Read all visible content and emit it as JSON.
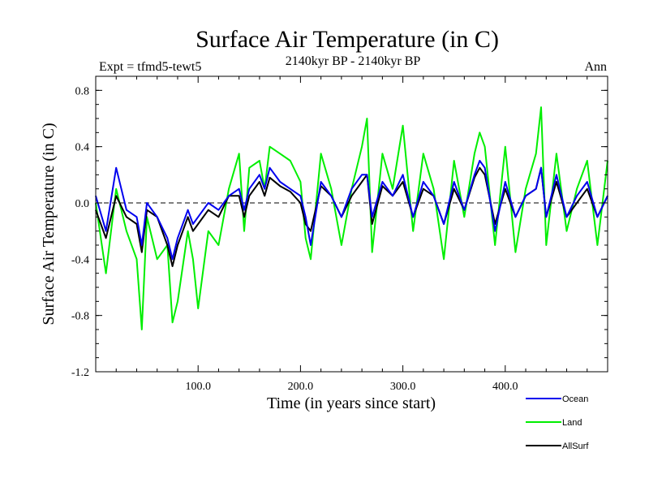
{
  "chart_data": {
    "type": "line",
    "title": "Surface Air Temperature (in C)",
    "subtitle": "2140kyr BP - 2140kyr BP",
    "left_label": "Expt = tfmd5-tewt5",
    "right_label": "Ann",
    "xlabel": "Time (in years since start)",
    "ylabel": "Surface Air Temperature (in C)",
    "xlim": [
      0,
      500
    ],
    "ylim": [
      -1.2,
      0.9
    ],
    "xticks": [
      100,
      200,
      300,
      400
    ],
    "xtick_labels": [
      "100.0",
      "200.0",
      "300.0",
      "400.0"
    ],
    "yticks": [
      0.8,
      0.4,
      0.0,
      -0.4,
      -0.8,
      -1.2
    ],
    "ytick_labels": [
      "0.8",
      "0.4",
      "0.0",
      "-0.4",
      "-0.8",
      "-1.2"
    ],
    "zero_line": true,
    "legend_position": "bottom-right",
    "series": [
      {
        "name": "Land",
        "color": "#00ee00",
        "x": [
          0,
          10,
          20,
          30,
          40,
          45,
          50,
          60,
          70,
          75,
          80,
          90,
          95,
          100,
          110,
          120,
          130,
          140,
          145,
          150,
          160,
          165,
          170,
          180,
          190,
          200,
          205,
          210,
          220,
          230,
          240,
          250,
          260,
          265,
          270,
          280,
          290,
          300,
          310,
          320,
          330,
          340,
          350,
          360,
          370,
          375,
          380,
          390,
          400,
          410,
          420,
          430,
          435,
          440,
          450,
          460,
          470,
          480,
          490,
          500
        ],
        "values": [
          0.0,
          -0.5,
          0.1,
          -0.2,
          -0.4,
          -0.9,
          -0.1,
          -0.4,
          -0.3,
          -0.85,
          -0.7,
          -0.2,
          -0.4,
          -0.75,
          -0.2,
          -0.3,
          0.1,
          0.35,
          -0.2,
          0.25,
          0.3,
          0.1,
          0.4,
          0.35,
          0.3,
          0.15,
          -0.25,
          -0.4,
          0.35,
          0.1,
          -0.3,
          0.1,
          0.4,
          0.6,
          -0.35,
          0.35,
          0.1,
          0.55,
          -0.2,
          0.35,
          0.1,
          -0.4,
          0.3,
          -0.1,
          0.35,
          0.5,
          0.4,
          -0.3,
          0.4,
          -0.35,
          0.1,
          0.35,
          0.68,
          -0.3,
          0.35,
          -0.2,
          0.1,
          0.3,
          -0.3,
          0.3
        ]
      },
      {
        "name": "AllSurf",
        "color": "#000000",
        "x": [
          0,
          10,
          20,
          30,
          40,
          45,
          50,
          60,
          70,
          75,
          80,
          90,
          95,
          100,
          110,
          120,
          130,
          140,
          145,
          150,
          160,
          165,
          170,
          180,
          190,
          200,
          205,
          210,
          220,
          230,
          240,
          250,
          260,
          265,
          270,
          280,
          290,
          300,
          310,
          320,
          330,
          340,
          350,
          360,
          370,
          375,
          380,
          390,
          400,
          410,
          420,
          430,
          435,
          440,
          450,
          460,
          470,
          480,
          490,
          500
        ],
        "values": [
          -0.05,
          -0.25,
          0.05,
          -0.1,
          -0.15,
          -0.35,
          -0.05,
          -0.1,
          -0.3,
          -0.45,
          -0.3,
          -0.1,
          -0.2,
          -0.15,
          -0.05,
          -0.1,
          0.05,
          0.05,
          -0.1,
          0.05,
          0.15,
          0.05,
          0.18,
          0.12,
          0.08,
          0.0,
          -0.15,
          -0.2,
          0.12,
          0.05,
          -0.1,
          0.05,
          0.15,
          0.2,
          -0.15,
          0.12,
          0.05,
          0.15,
          -0.1,
          0.1,
          0.05,
          -0.15,
          0.1,
          -0.05,
          0.18,
          0.25,
          0.2,
          -0.15,
          0.1,
          -0.1,
          0.05,
          0.1,
          0.25,
          -0.1,
          0.15,
          -0.1,
          0.0,
          0.1,
          -0.1,
          0.05
        ]
      },
      {
        "name": "Ocean",
        "color": "#0000ee",
        "x": [
          0,
          10,
          20,
          30,
          40,
          45,
          50,
          60,
          70,
          75,
          80,
          90,
          95,
          100,
          110,
          120,
          130,
          140,
          145,
          150,
          160,
          165,
          170,
          180,
          190,
          200,
          205,
          210,
          220,
          230,
          240,
          250,
          260,
          265,
          270,
          280,
          290,
          300,
          310,
          320,
          330,
          340,
          350,
          360,
          370,
          375,
          380,
          390,
          400,
          410,
          420,
          430,
          435,
          440,
          450,
          460,
          470,
          480,
          490,
          500
        ],
        "values": [
          0.05,
          -0.2,
          0.25,
          -0.05,
          -0.1,
          -0.3,
          0.0,
          -0.1,
          -0.25,
          -0.4,
          -0.25,
          -0.05,
          -0.15,
          -0.1,
          0.0,
          -0.05,
          0.05,
          0.1,
          -0.05,
          0.1,
          0.2,
          0.1,
          0.25,
          0.15,
          0.1,
          0.05,
          -0.1,
          -0.3,
          0.15,
          0.05,
          -0.1,
          0.1,
          0.2,
          0.2,
          -0.1,
          0.15,
          0.05,
          0.2,
          -0.1,
          0.15,
          0.05,
          -0.15,
          0.15,
          -0.05,
          0.2,
          0.3,
          0.25,
          -0.2,
          0.15,
          -0.1,
          0.05,
          0.1,
          0.25,
          -0.1,
          0.2,
          -0.1,
          0.05,
          0.15,
          -0.1,
          0.05
        ]
      }
    ],
    "legend": [
      {
        "name": "Ocean",
        "color": "#0000ee"
      },
      {
        "name": "Land",
        "color": "#00ee00"
      },
      {
        "name": "AllSurf",
        "color": "#000000"
      }
    ]
  }
}
